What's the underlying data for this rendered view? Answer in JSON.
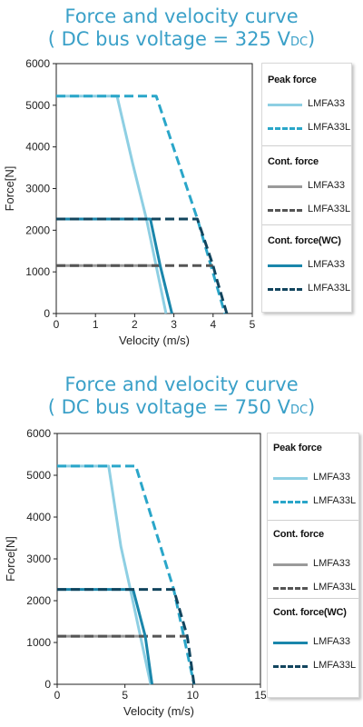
{
  "colors": {
    "peak_lmfa33": "#8ecfe3",
    "peak_lmfa33l": "#2aa6c9",
    "cont_lmfa33": "#9a9a9a",
    "cont_lmfa33l": "#555555",
    "wc_lmfa33": "#1a86ab",
    "wc_lmfa33l": "#12455e",
    "title": "#3aa0c8"
  },
  "charts": [
    {
      "title_line1": "Force and velocity curve",
      "title_line2_pre": "( DC bus voltage = 325 V",
      "title_line2_sub": "DC",
      "title_line2_post": ")",
      "legend": {
        "groups": [
          {
            "heading": "Peak force",
            "items": [
              {
                "label": "LMFA33",
                "color_key": "peak_lmfa33",
                "dashed": false
              },
              {
                "label": "LMFA33L",
                "color_key": "peak_lmfa33l",
                "dashed": true
              }
            ]
          },
          {
            "heading": "Cont. force",
            "items": [
              {
                "label": "LMFA33",
                "color_key": "cont_lmfa33",
                "dashed": false
              },
              {
                "label": "LMFA33L",
                "color_key": "cont_lmfa33l",
                "dashed": true
              }
            ]
          },
          {
            "heading": "Cont. force(WC)",
            "items": [
              {
                "label": "LMFA33",
                "color_key": "wc_lmfa33",
                "dashed": false
              },
              {
                "label": "LMFA33L",
                "color_key": "wc_lmfa33l",
                "dashed": true
              }
            ]
          }
        ]
      }
    },
    {
      "title_line1": "Force and velocity curve",
      "title_line2_pre": "( DC bus voltage = 750 V",
      "title_line2_sub": "DC",
      "title_line2_post": ")",
      "legend": {
        "groups": [
          {
            "heading": "Peak force",
            "items": [
              {
                "label": "LMFA33",
                "color_key": "peak_lmfa33",
                "dashed": false
              },
              {
                "label": "LMFA33L",
                "color_key": "peak_lmfa33l",
                "dashed": true
              }
            ]
          },
          {
            "heading": "Cont. force",
            "items": [
              {
                "label": "LMFA33",
                "color_key": "cont_lmfa33",
                "dashed": false
              },
              {
                "label": "LMFA33L",
                "color_key": "cont_lmfa33l",
                "dashed": true
              }
            ]
          },
          {
            "heading": "Cont. force(WC)",
            "items": [
              {
                "label": "LMFA33",
                "color_key": "wc_lmfa33",
                "dashed": false
              },
              {
                "label": "LMFA33L",
                "color_key": "wc_lmfa33l",
                "dashed": true
              }
            ]
          }
        ]
      }
    }
  ],
  "chart_data": [
    {
      "type": "line",
      "title": "Force and velocity curve ( DC bus voltage = 325 VDC)",
      "xlabel": "Velocity (m/s)",
      "ylabel": "Force[N]",
      "xlim": [
        0,
        5
      ],
      "ylim": [
        0,
        6000
      ],
      "xticks": [
        0,
        1,
        2,
        3,
        4,
        5
      ],
      "yticks": [
        0,
        1000,
        2000,
        3000,
        4000,
        5000,
        6000
      ],
      "grid": false,
      "legend_position": "right",
      "series": [
        {
          "name": "Peak force LMFA33",
          "color_key": "peak_lmfa33",
          "dashed": false,
          "x": [
            0,
            1.55,
            1.95,
            2.3,
            2.8
          ],
          "y": [
            5220,
            5220,
            3600,
            2270,
            0
          ]
        },
        {
          "name": "Peak force LMFA33L",
          "color_key": "peak_lmfa33l",
          "dashed": true,
          "x": [
            0,
            2.55,
            3.6,
            4.3
          ],
          "y": [
            5220,
            5220,
            2270,
            0
          ]
        },
        {
          "name": "Cont. force LMFA33",
          "color_key": "cont_lmfa33",
          "dashed": false,
          "x": [
            0,
            2.65
          ],
          "y": [
            1150,
            1150
          ]
        },
        {
          "name": "Cont. force LMFA33L",
          "color_key": "cont_lmfa33l",
          "dashed": true,
          "x": [
            0,
            4.0
          ],
          "y": [
            1150,
            1150
          ]
        },
        {
          "name": "Cont. force(WC) LMFA33",
          "color_key": "wc_lmfa33",
          "dashed": false,
          "x": [
            0,
            2.4,
            2.65,
            2.95
          ],
          "y": [
            2270,
            2270,
            1150,
            0
          ]
        },
        {
          "name": "Cont. force(WC) LMFA33L",
          "color_key": "wc_lmfa33l",
          "dashed": true,
          "x": [
            0,
            3.6,
            4.0,
            4.1,
            4.35
          ],
          "y": [
            2270,
            2270,
            1150,
            800,
            0
          ]
        }
      ]
    },
    {
      "type": "line",
      "title": "Force and velocity curve ( DC bus voltage = 750 VDC)",
      "xlabel": "Velocity (m/s)",
      "ylabel": "Force[N]",
      "xlim": [
        0,
        15
      ],
      "ylim": [
        0,
        6000
      ],
      "xticks": [
        0,
        5,
        10,
        15
      ],
      "yticks": [
        0,
        1000,
        2000,
        3000,
        4000,
        5000,
        6000
      ],
      "grid": false,
      "legend_position": "right",
      "series": [
        {
          "name": "Peak force LMFA33",
          "color_key": "peak_lmfa33",
          "dashed": false,
          "x": [
            0,
            3.8,
            4.7,
            5.4,
            6.9
          ],
          "y": [
            5220,
            5220,
            3300,
            2270,
            0
          ]
        },
        {
          "name": "Peak force LMFA33L",
          "color_key": "peak_lmfa33l",
          "dashed": true,
          "x": [
            0,
            5.8,
            8.6,
            10.1
          ],
          "y": [
            5220,
            5220,
            2270,
            0
          ]
        },
        {
          "name": "Cont. force LMFA33",
          "color_key": "cont_lmfa33",
          "dashed": false,
          "x": [
            0,
            6.5
          ],
          "y": [
            1150,
            1150
          ]
        },
        {
          "name": "Cont. force LMFA33L",
          "color_key": "cont_lmfa33l",
          "dashed": true,
          "x": [
            0,
            9.6
          ],
          "y": [
            1150,
            1150
          ]
        },
        {
          "name": "Cont. force(WC) LMFA33",
          "color_key": "wc_lmfa33",
          "dashed": false,
          "x": [
            0,
            5.6,
            6.5,
            7.0
          ],
          "y": [
            2270,
            2270,
            1150,
            0
          ]
        },
        {
          "name": "Cont. force(WC) LMFA33L",
          "color_key": "wc_lmfa33l",
          "dashed": true,
          "x": [
            0,
            8.6,
            9.6,
            10.1
          ],
          "y": [
            2270,
            2270,
            1150,
            0
          ]
        }
      ]
    }
  ]
}
